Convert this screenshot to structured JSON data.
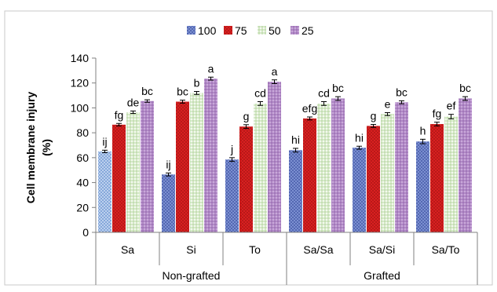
{
  "chart_data": {
    "type": "bar",
    "ylabel_line1": "Cell membrane injury",
    "ylabel_line2": "(%)",
    "ylim": [
      0,
      140
    ],
    "yticks": [
      "0",
      "20",
      "40",
      "60",
      "80",
      "100",
      "120",
      "140"
    ],
    "legend_position": "top-center",
    "categories": [
      "Sa",
      "Si",
      "To",
      "Sa/Sa",
      "Sa/Si",
      "Sa/To"
    ],
    "groups": [
      {
        "label": "Non-grafted",
        "span": 3
      },
      {
        "label": "Grafted",
        "span": 3
      }
    ],
    "series": [
      {
        "name": "100",
        "color": "#7b8fd1",
        "values": [
          65,
          46.5,
          58.5,
          66,
          68,
          73
        ],
        "errors": [
          1,
          1.2,
          1.5,
          1.5,
          1.2,
          1.8
        ],
        "labels": [
          "ij",
          "ij",
          "j",
          "hi",
          "hi",
          "h"
        ]
      },
      {
        "name": "75",
        "color": "#d61c1c",
        "values": [
          86.5,
          105,
          85,
          91.5,
          85.5,
          87
        ],
        "errors": [
          1,
          1.2,
          1.5,
          1.2,
          1.2,
          1.5
        ],
        "labels": [
          "fg",
          "bc",
          "g",
          "efg",
          "g",
          "fg"
        ]
      },
      {
        "name": "50",
        "color": "#e8f3df",
        "values": [
          96.5,
          112,
          103.5,
          103.5,
          95,
          93
        ],
        "errors": [
          1,
          1.2,
          1.5,
          1.5,
          1.2,
          1.8
        ],
        "labels": [
          "de",
          "b",
          "cd",
          "cd",
          "e",
          "ef"
        ]
      },
      {
        "name": "25",
        "color": "#c8a6d8",
        "values": [
          105.5,
          123.5,
          121,
          107.5,
          104.5,
          107.5
        ],
        "errors": [
          1,
          1.2,
          1.5,
          1.5,
          1.2,
          1.5
        ],
        "labels": [
          "bc",
          "a",
          "a",
          "bc",
          "bc",
          "bc"
        ]
      }
    ],
    "first_bar_color": "#a9c2e6"
  }
}
